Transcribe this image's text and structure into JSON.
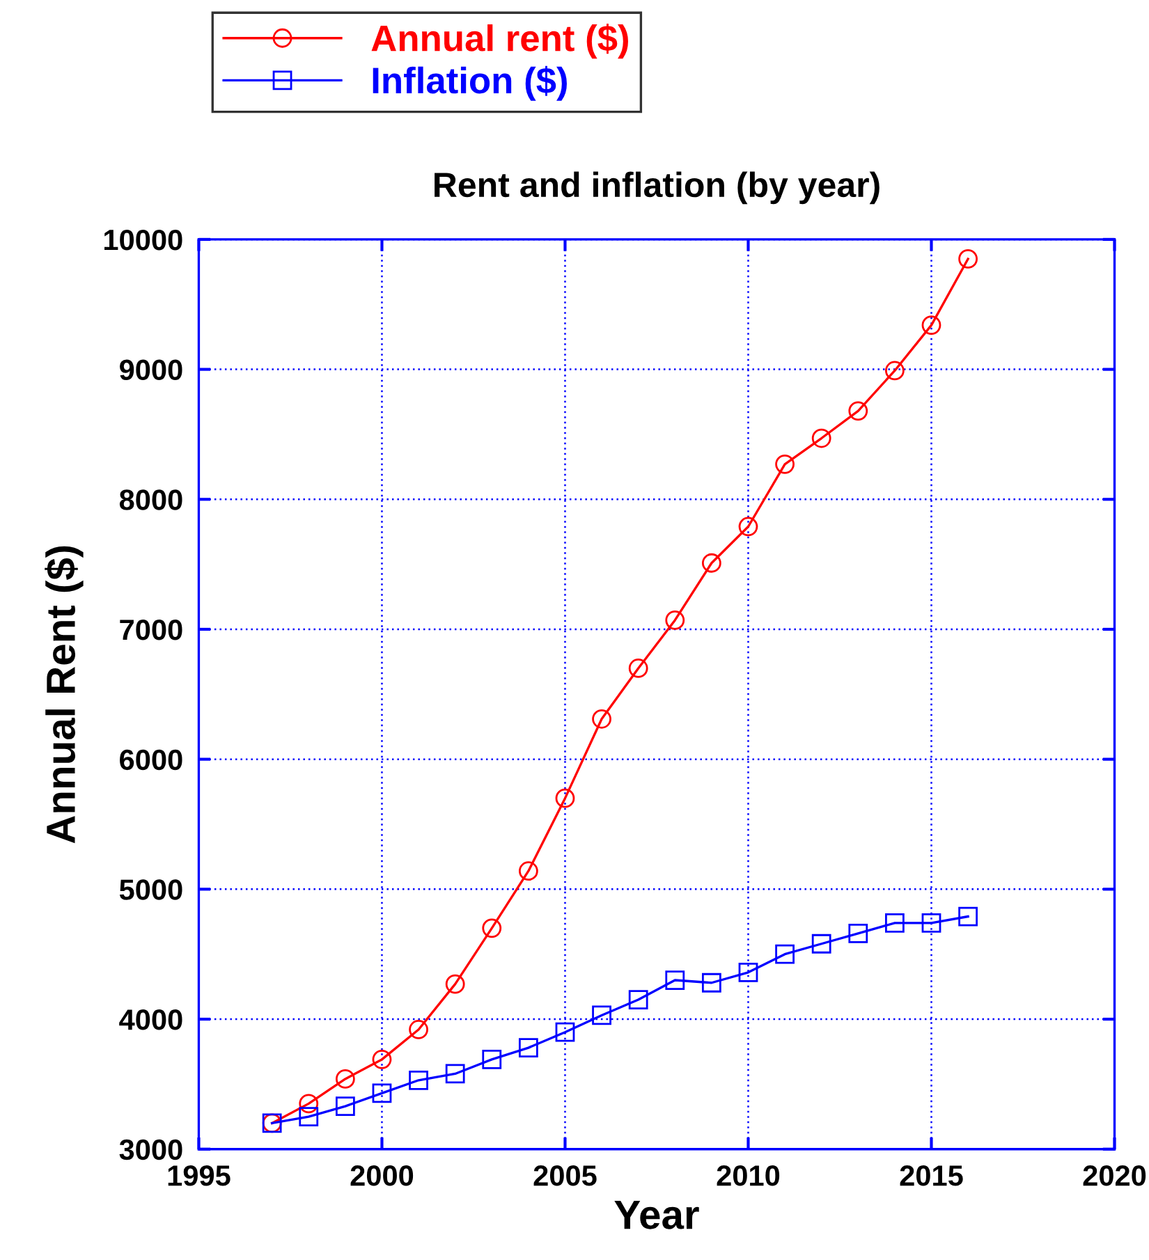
{
  "chart_data": {
    "type": "line",
    "title": "Rent and inflation (by year)",
    "xlabel": "Year",
    "ylabel": "Annual Rent ($)",
    "x": [
      1997,
      1998,
      1999,
      2000,
      2001,
      2002,
      2003,
      2004,
      2005,
      2006,
      2007,
      2008,
      2009,
      2010,
      2011,
      2012,
      2013,
      2014,
      2015,
      2016
    ],
    "series": [
      {
        "name": "Annual rent ($)",
        "color": "#ff0000",
        "marker": "circle",
        "values": [
          3200,
          3350,
          3540,
          3690,
          3920,
          4270,
          4700,
          5140,
          5700,
          6310,
          6700,
          7070,
          7510,
          7790,
          8270,
          8470,
          8680,
          8990,
          9340,
          9850
        ]
      },
      {
        "name": "Inflation ($)",
        "color": "#0000ff",
        "marker": "square",
        "values": [
          3200,
          3250,
          3330,
          3430,
          3530,
          3580,
          3690,
          3780,
          3900,
          4030,
          4150,
          4300,
          4280,
          4360,
          4500,
          4580,
          4660,
          4740,
          4740,
          4790
        ]
      }
    ],
    "xlim": [
      1995,
      2020
    ],
    "xticks": [
      1995,
      2000,
      2005,
      2010,
      2015,
      2020
    ],
    "ylim": [
      3000,
      10000
    ],
    "yticks": [
      3000,
      4000,
      5000,
      6000,
      7000,
      8000,
      9000,
      10000
    ],
    "grid": true,
    "legend": "top left",
    "line_style": "solid"
  }
}
